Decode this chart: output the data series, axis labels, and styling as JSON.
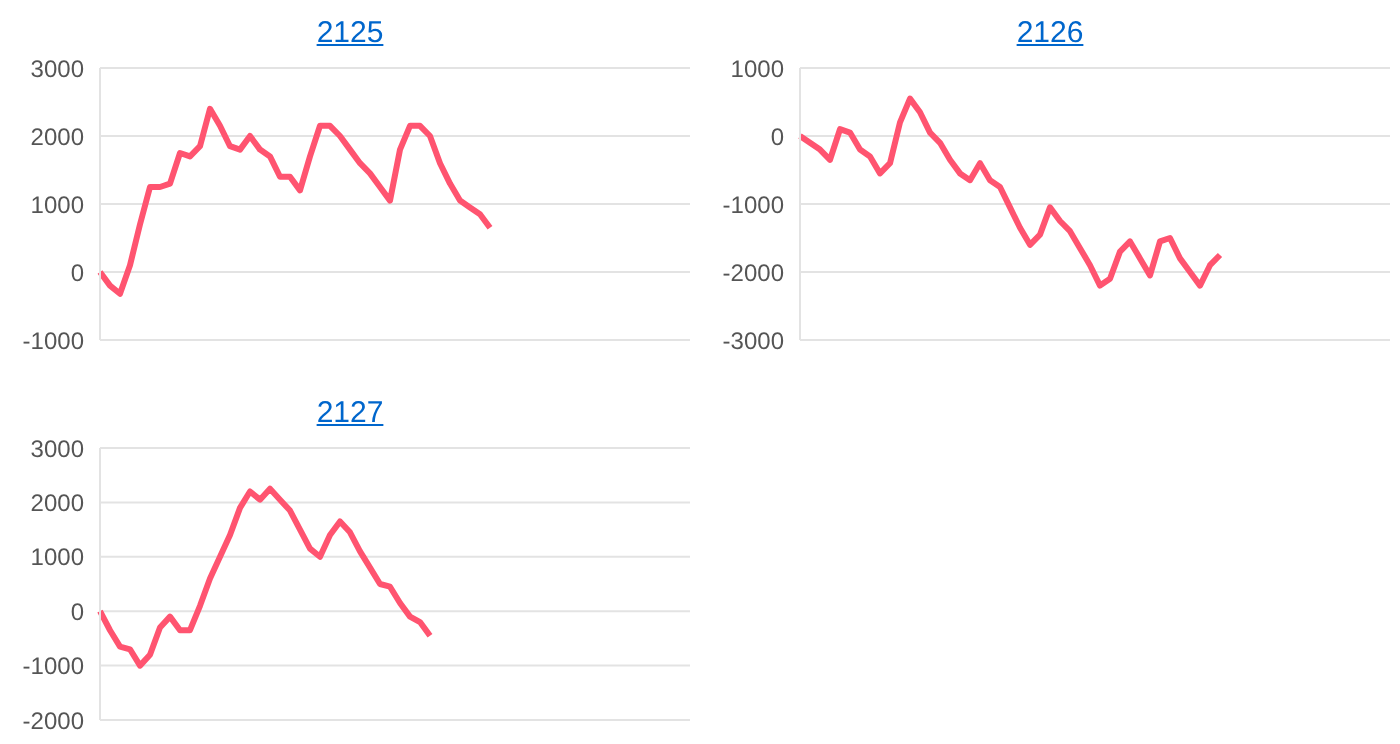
{
  "chart_data": [
    {
      "type": "line",
      "title": "2125",
      "categories": [
        null,
        null,
        null,
        null,
        null,
        null,
        null,
        null,
        null,
        null,
        null,
        null,
        null,
        null,
        null,
        null,
        null,
        null,
        null,
        null,
        null,
        null,
        null,
        null,
        null,
        null,
        null,
        null,
        null,
        null,
        null,
        null,
        null,
        null,
        null,
        null,
        null,
        null,
        null,
        null,
        null,
        null,
        null,
        null,
        null,
        null,
        null,
        null,
        null,
        null,
        null,
        null,
        null,
        null,
        null,
        null,
        null,
        null,
        null,
        null
      ],
      "series": [
        {
          "color": "#ff5470",
          "values": [
            0,
            -200,
            -320,
            100,
            700,
            1250,
            1250,
            1300,
            1750,
            1700,
            1850,
            2400,
            2150,
            1850,
            1800,
            2000,
            1800,
            1700,
            1400,
            1400,
            1200,
            1700,
            2150,
            2150,
            2000,
            1800,
            1600,
            1450,
            1250,
            1050,
            1800,
            2150,
            2150,
            2000,
            1600,
            1300,
            1050,
            950,
            850,
            650,
            null,
            null,
            null,
            null,
            null,
            null,
            null,
            null,
            null,
            null,
            null,
            null,
            null,
            null,
            null,
            null,
            null,
            null,
            null,
            null
          ]
        }
      ],
      "ylim": [
        -1000,
        3000
      ],
      "yticks": [
        -1000,
        0,
        1000,
        2000,
        3000
      ],
      "grid": "y",
      "tick_labels": "y",
      "marker": "none",
      "line_style": "solid"
    },
    {
      "type": "line",
      "title": "2126",
      "categories": [
        null,
        null,
        null,
        null,
        null,
        null,
        null,
        null,
        null,
        null,
        null,
        null,
        null,
        null,
        null,
        null,
        null,
        null,
        null,
        null,
        null,
        null,
        null,
        null,
        null,
        null,
        null,
        null,
        null,
        null,
        null,
        null,
        null,
        null,
        null,
        null,
        null,
        null,
        null,
        null,
        null,
        null,
        null,
        null,
        null,
        null,
        null,
        null,
        null,
        null,
        null,
        null,
        null,
        null,
        null,
        null,
        null,
        null,
        null,
        null
      ],
      "series": [
        {
          "color": "#ff5470",
          "values": [
            0,
            -100,
            -200,
            -350,
            100,
            50,
            -200,
            -300,
            -550,
            -400,
            200,
            550,
            350,
            50,
            -100,
            -350,
            -550,
            -650,
            -400,
            -650,
            -750,
            -1050,
            -1350,
            -1600,
            -1450,
            -1050,
            -1250,
            -1400,
            -1650,
            -1900,
            -2200,
            -2100,
            -1700,
            -1550,
            -1800,
            -2050,
            -1550,
            -1500,
            -1800,
            -2000,
            -2200,
            -1900,
            -1750,
            null,
            null,
            null,
            null,
            null,
            null,
            null,
            null,
            null,
            null,
            null,
            null,
            null,
            null,
            null,
            null,
            null
          ]
        }
      ],
      "ylim": [
        -3000,
        1000
      ],
      "yticks": [
        -3000,
        -2000,
        -1000,
        0,
        1000
      ],
      "grid": "y",
      "tick_labels": "y",
      "marker": "none",
      "line_style": "solid"
    },
    {
      "type": "line",
      "title": "2127",
      "categories": [
        null,
        null,
        null,
        null,
        null,
        null,
        null,
        null,
        null,
        null,
        null,
        null,
        null,
        null,
        null,
        null,
        null,
        null,
        null,
        null,
        null,
        null,
        null,
        null,
        null,
        null,
        null,
        null,
        null,
        null,
        null,
        null,
        null,
        null,
        null,
        null,
        null,
        null,
        null,
        null,
        null,
        null,
        null,
        null,
        null,
        null,
        null,
        null,
        null,
        null,
        null,
        null,
        null,
        null,
        null,
        null,
        null,
        null,
        null,
        null
      ],
      "series": [
        {
          "color": "#ff5470",
          "values": [
            0,
            -350,
            -650,
            -700,
            -1000,
            -800,
            -300,
            -100,
            -350,
            -350,
            100,
            600,
            1000,
            1400,
            1900,
            2200,
            2050,
            2250,
            2050,
            1850,
            1500,
            1150,
            1000,
            1400,
            1650,
            1450,
            1100,
            800,
            500,
            450,
            150,
            -100,
            -200,
            -450,
            null,
            null,
            null,
            null,
            null,
            null,
            null,
            null,
            null,
            null,
            null,
            null,
            null,
            null,
            null,
            null,
            null,
            null,
            null,
            null,
            null,
            null,
            null,
            null,
            null,
            null
          ]
        }
      ],
      "ylim": [
        -2000,
        3000
      ],
      "yticks": [
        -2000,
        -1000,
        0,
        1000,
        2000,
        3000
      ],
      "grid": "y",
      "tick_labels": "y",
      "marker": "none",
      "line_style": "solid"
    }
  ]
}
